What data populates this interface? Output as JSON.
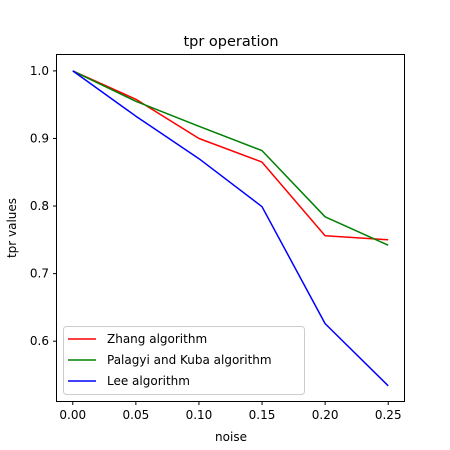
{
  "chart_data": {
    "type": "line",
    "title": "tpr operation",
    "xlabel": "noise",
    "ylabel": "tpr values",
    "x": [
      0.0,
      0.05,
      0.1,
      0.15,
      0.2,
      0.25
    ],
    "xticks": [
      "0.00",
      "0.05",
      "0.10",
      "0.15",
      "0.20",
      "0.25"
    ],
    "yticks": [
      "0.6",
      "0.7",
      "0.8",
      "0.9",
      "1.0"
    ],
    "xlim": [
      -0.0125,
      0.2625
    ],
    "ylim": [
      0.5115,
      1.0235
    ],
    "grid": false,
    "legend_position": "lower-left",
    "series": [
      {
        "name": "Zhang algorithm",
        "color": "#ff0000",
        "values": [
          1.0,
          0.958,
          0.9,
          0.865,
          0.756,
          0.75
        ]
      },
      {
        "name": "Palagyi and Kuba algorithm",
        "color": "#008000",
        "values": [
          1.0,
          0.955,
          0.918,
          0.882,
          0.784,
          0.742
        ]
      },
      {
        "name": "Lee algorithm",
        "color": "#0000ff",
        "values": [
          1.0,
          0.933,
          0.87,
          0.799,
          0.626,
          0.534
        ]
      }
    ]
  }
}
